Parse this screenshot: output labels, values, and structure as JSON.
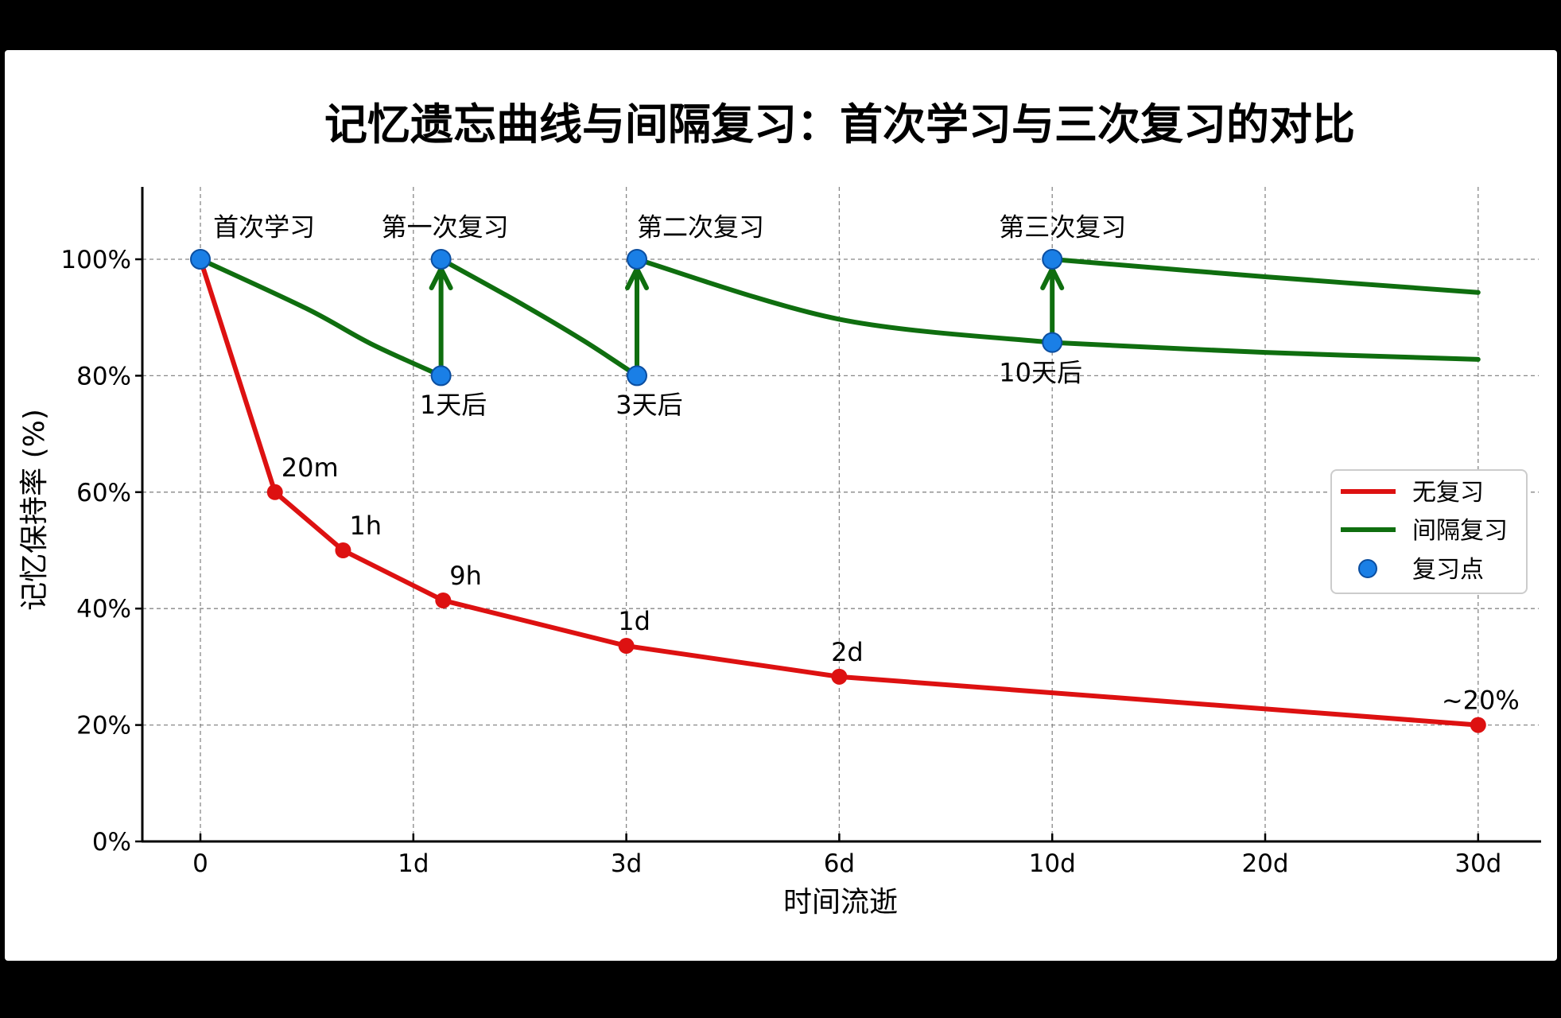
{
  "chart_data": {
    "type": "line",
    "title": "记忆遗忘曲线与间隔复习：首次学习与三次复习的对比",
    "xlabel": "时间流逝",
    "ylabel": "记忆保持率 (%)",
    "x_ticks": [
      "0",
      "1d",
      "3d",
      "6d",
      "10d",
      "20d",
      "30d"
    ],
    "y_ticks": [
      "0%",
      "20%",
      "40%",
      "60%",
      "80%",
      "100%"
    ],
    "ylim": [
      0,
      110
    ],
    "grid": true,
    "legend_position": "center right",
    "legend": [
      {
        "label": "无复习",
        "kind": "line",
        "color": "#dd1111"
      },
      {
        "label": "间隔复习",
        "kind": "line",
        "color": "#0f6e0f"
      },
      {
        "label": "复习点",
        "kind": "marker",
        "color": "#1a7fe6"
      }
    ],
    "series": [
      {
        "name": "无复习",
        "color": "#dd1111",
        "points": [
          {
            "x": 0,
            "y": 100,
            "label": ""
          },
          {
            "x": 0.35,
            "y": 60,
            "label": "20m"
          },
          {
            "x": 0.67,
            "y": 50,
            "label": "1h"
          },
          {
            "x": 1.14,
            "y": 41.4,
            "label": "9h"
          },
          {
            "x": 2.0,
            "y": 33.6,
            "label": "1d"
          },
          {
            "x": 3.0,
            "y": 28.3,
            "label": "2d"
          },
          {
            "x": 6.0,
            "y": 20,
            "label": "~20%"
          }
        ]
      },
      {
        "name": "间隔复习",
        "color": "#0f6e0f",
        "segments": [
          [
            {
              "x": 0,
              "y": 100
            },
            {
              "x": 0.5,
              "y": 91.5
            },
            {
              "x": 0.8,
              "y": 85.5
            },
            {
              "x": 1.13,
              "y": 80
            }
          ],
          [
            {
              "x": 1.13,
              "y": 100
            },
            {
              "x": 1.5,
              "y": 92.5
            },
            {
              "x": 1.8,
              "y": 86
            },
            {
              "x": 2.05,
              "y": 80
            }
          ],
          [
            {
              "x": 2.05,
              "y": 100
            },
            {
              "x": 3.0,
              "y": 89.7
            },
            {
              "x": 4.0,
              "y": 85.7
            }
          ],
          [
            {
              "x": 4.0,
              "y": 85.7
            },
            {
              "x": 5.0,
              "y": 84.0
            },
            {
              "x": 6.0,
              "y": 82.8
            }
          ],
          [
            {
              "x": 4.0,
              "y": 100
            },
            {
              "x": 5.0,
              "y": 97.0
            },
            {
              "x": 6.0,
              "y": 94.3
            }
          ]
        ]
      }
    ],
    "review_points": [
      {
        "x": 0,
        "y": 100
      },
      {
        "x": 1.13,
        "y": 80
      },
      {
        "x": 1.13,
        "y": 100
      },
      {
        "x": 2.05,
        "y": 80
      },
      {
        "x": 2.05,
        "y": 100
      },
      {
        "x": 4.0,
        "y": 85.7
      },
      {
        "x": 4.0,
        "y": 100
      }
    ],
    "arrows": [
      {
        "x": 1.13,
        "from": 80,
        "to": 100
      },
      {
        "x": 2.05,
        "from": 80,
        "to": 100
      },
      {
        "x": 4.0,
        "from": 85.7,
        "to": 100
      }
    ],
    "annotations": [
      {
        "text": "首次学习",
        "x": 0.06,
        "y": 104,
        "anchor": "start"
      },
      {
        "text": "第一次复习",
        "x": 0.85,
        "y": 104,
        "anchor": "start"
      },
      {
        "text": "第二次复习",
        "x": 2.05,
        "y": 104,
        "anchor": "start"
      },
      {
        "text": "第三次复习",
        "x": 3.75,
        "y": 104,
        "anchor": "start"
      },
      {
        "text": "1天后",
        "x": 1.03,
        "y": 73.5,
        "anchor": "start"
      },
      {
        "text": "3天后",
        "x": 1.95,
        "y": 73.5,
        "anchor": "start"
      },
      {
        "text": "10天后",
        "x": 3.75,
        "y": 79,
        "anchor": "start"
      }
    ]
  }
}
